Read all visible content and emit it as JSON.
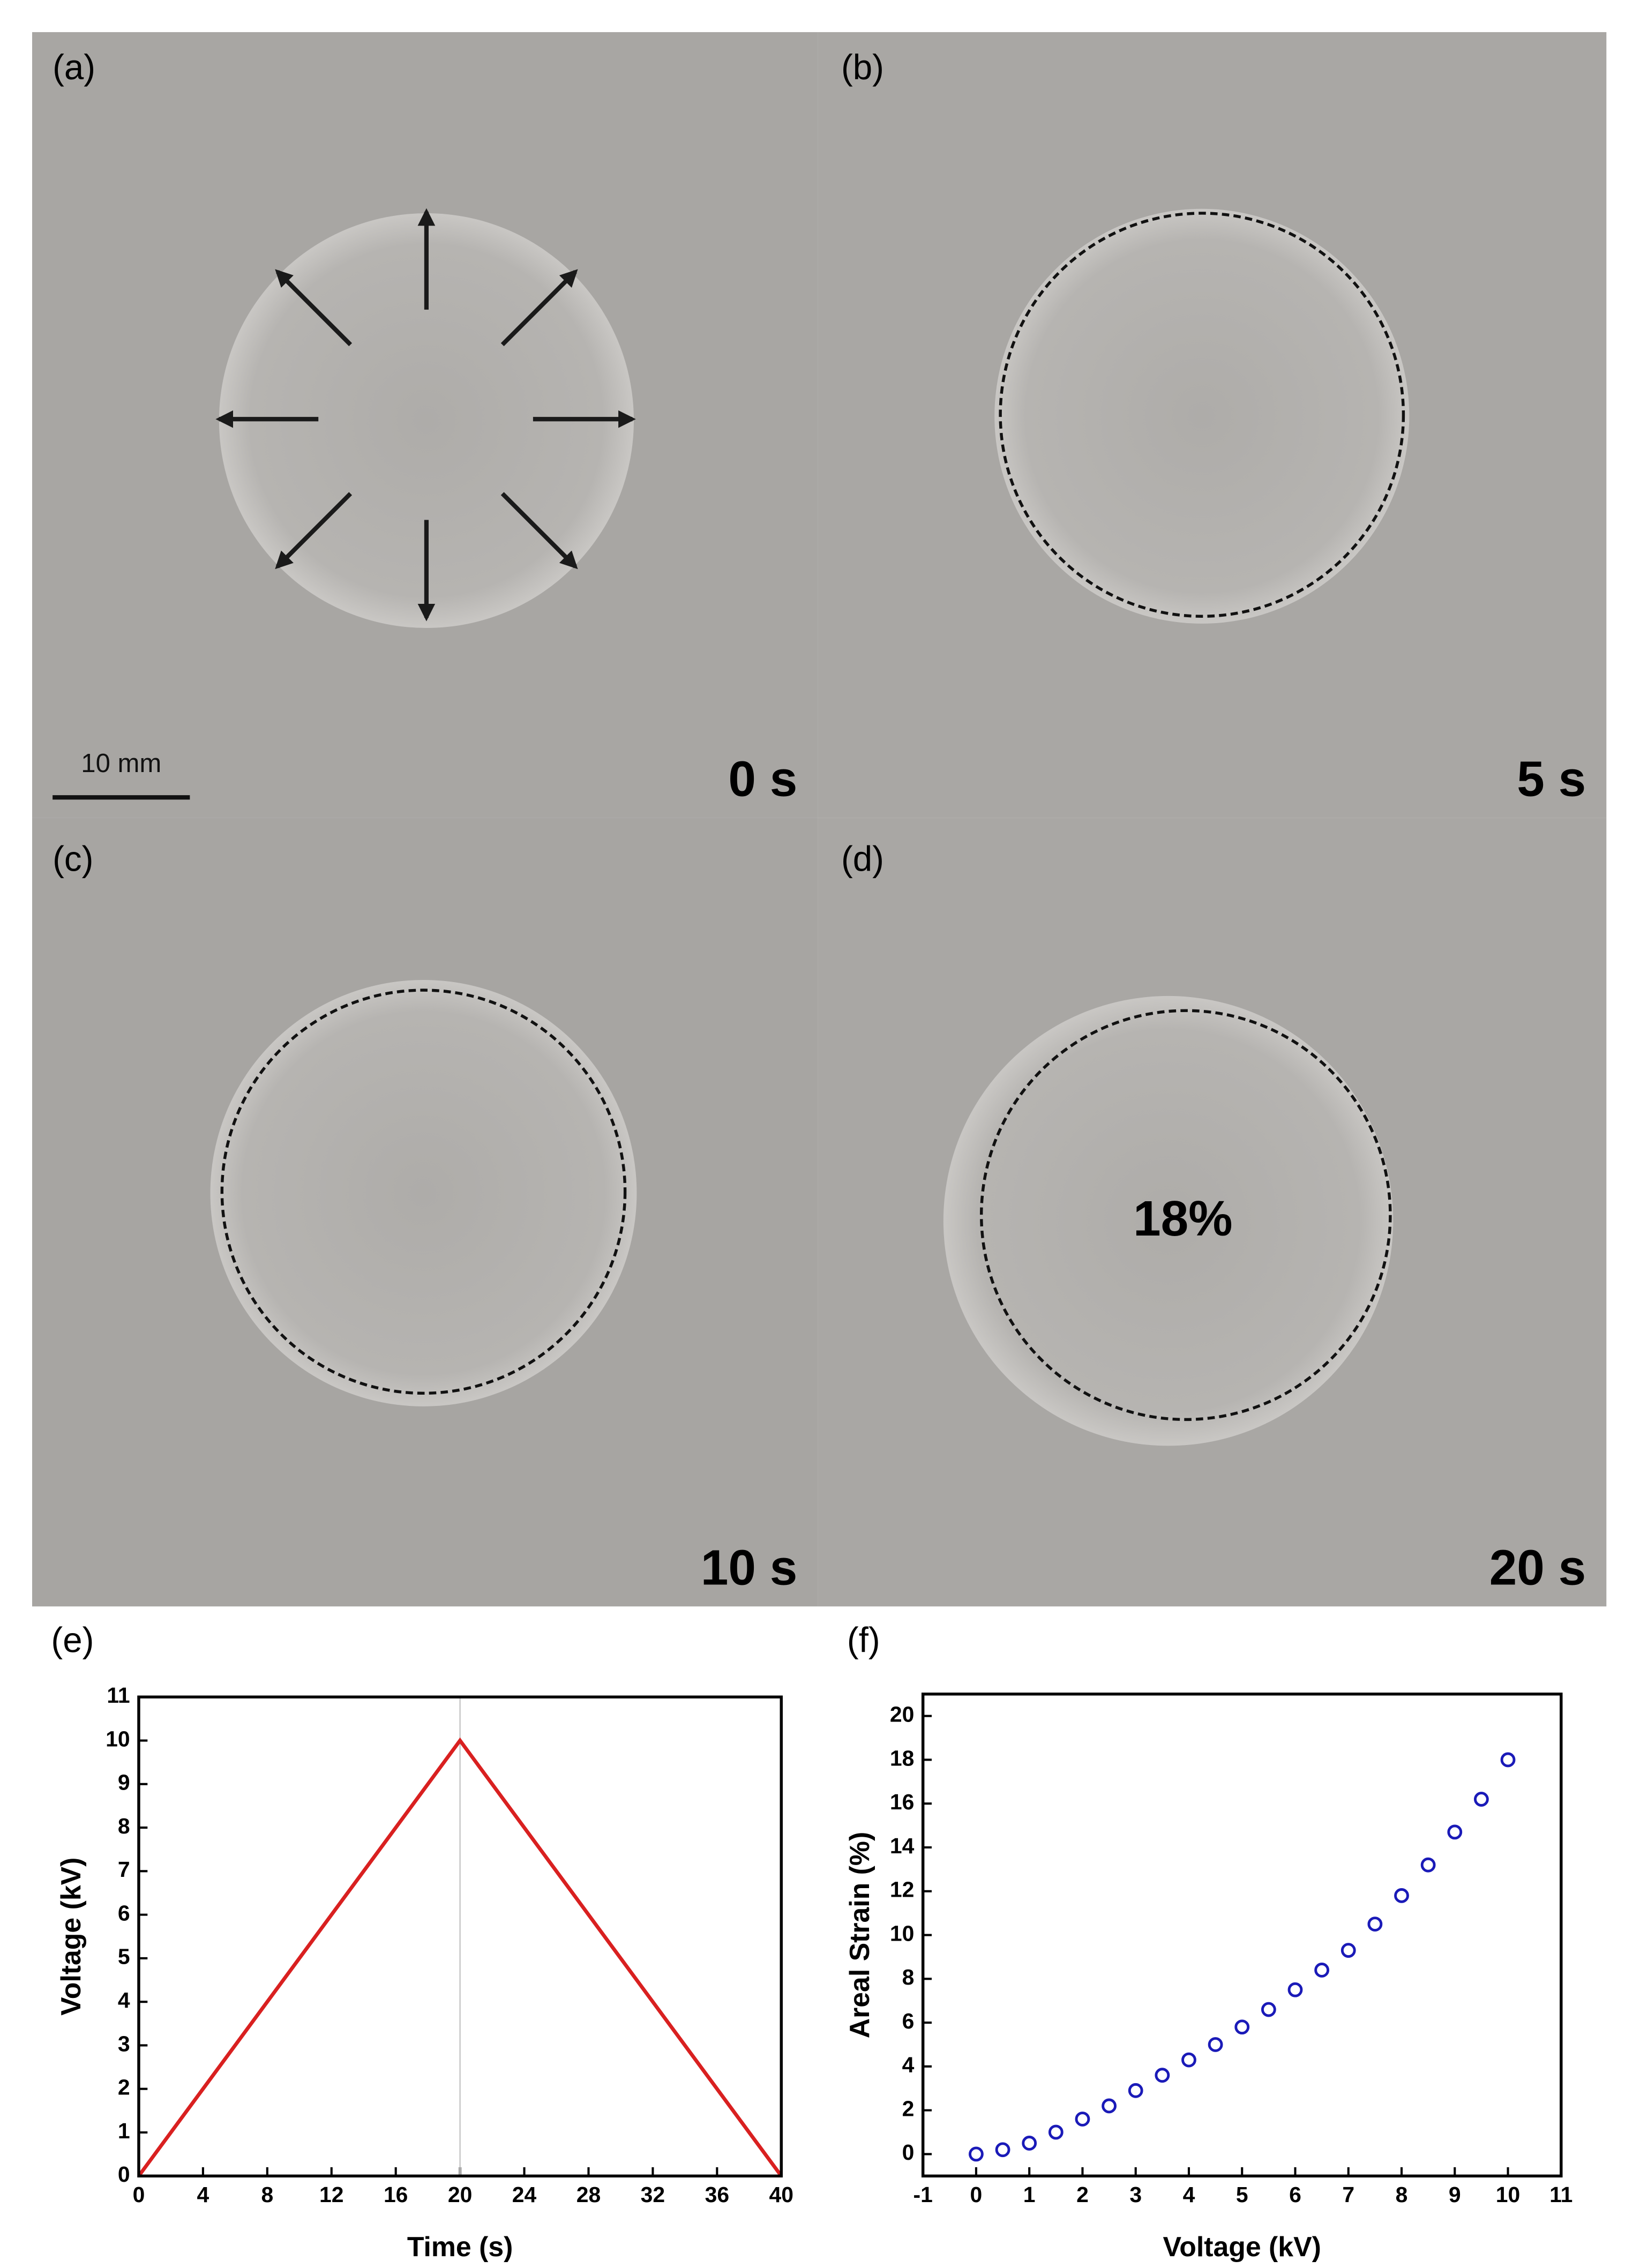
{
  "panels": [
    {
      "label": "(a)",
      "time": "0 s"
    },
    {
      "label": "(b)",
      "time": "5 s"
    },
    {
      "label": "(c)",
      "time": "10 s"
    },
    {
      "label": "(d)",
      "time": "20 s"
    }
  ],
  "scale_bar": "10 mm",
  "strain_annotation": "18%",
  "chart_data": [
    {
      "type": "line",
      "title": "(e)",
      "x_label": "Time (s)",
      "y_label": "Voltage (kV)",
      "x": [
        0,
        20,
        40
      ],
      "values": [
        0,
        10,
        0
      ],
      "color": "#d92020",
      "vline": 20,
      "vline_color": "#cccccc",
      "xlim": [
        0,
        40
      ],
      "xticks": [
        0,
        4,
        8,
        12,
        16,
        20,
        24,
        28,
        32,
        36,
        40
      ],
      "ylim": [
        0,
        11
      ],
      "yticks": [
        0,
        1,
        2,
        3,
        4,
        5,
        6,
        7,
        8,
        9,
        10,
        11
      ]
    },
    {
      "type": "scatter",
      "title": "(f)",
      "x_label": "Voltage (kV)",
      "y_label": "Areal Strain (%)",
      "x": [
        0,
        0.5,
        1,
        1.5,
        2,
        2.5,
        3,
        3.5,
        4,
        4.5,
        5,
        5.5,
        6,
        6.5,
        7,
        7.5,
        8,
        8.5,
        9,
        9.5,
        10
      ],
      "values": [
        0,
        0.2,
        0.5,
        1.0,
        1.6,
        2.2,
        2.9,
        3.6,
        4.3,
        5.0,
        5.8,
        6.6,
        7.5,
        8.4,
        9.3,
        10.5,
        11.8,
        13.2,
        14.7,
        16.2,
        18.0
      ],
      "color": "#1a1ab8",
      "xlim": [
        -1,
        11
      ],
      "xticks": [
        -1,
        0,
        1,
        2,
        3,
        4,
        5,
        6,
        7,
        8,
        9,
        10,
        11
      ],
      "ylim": [
        -1,
        21
      ],
      "yticks": [
        0,
        2,
        4,
        6,
        8,
        10,
        12,
        14,
        16,
        18,
        20
      ]
    }
  ]
}
